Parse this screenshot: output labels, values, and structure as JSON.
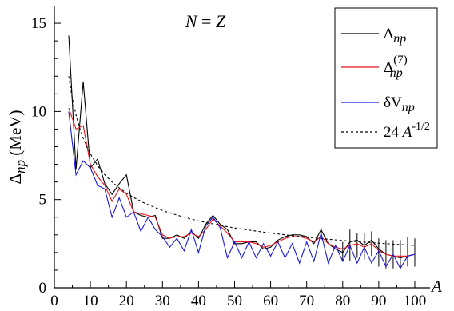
{
  "chart_data": {
    "type": "line",
    "annotation": "N = Z",
    "ylabel": {
      "main": "Δ",
      "sub": "np",
      "unit": " (MeV)"
    },
    "xlabel": "A",
    "xlim": [
      0,
      102
    ],
    "ylim": [
      0,
      16
    ],
    "xticks": [
      0,
      10,
      20,
      30,
      40,
      50,
      60,
      70,
      80,
      90,
      100
    ],
    "yticks": [
      0,
      5,
      10,
      15
    ],
    "grid": false,
    "legend_position": "top-right",
    "series": [
      {
        "key": "delta_np",
        "legend": {
          "main": "Δ",
          "sub": "np",
          "sup": ""
        },
        "color": "#000000",
        "dash": "",
        "x": [
          4,
          6,
          8,
          10,
          12,
          14,
          16,
          18,
          20,
          22,
          24,
          26,
          28,
          30,
          32,
          34,
          36,
          38,
          40,
          42,
          44,
          46,
          48,
          50,
          52,
          54,
          56,
          58,
          60,
          62,
          64,
          66,
          68,
          70,
          72,
          74,
          76,
          78,
          80,
          82,
          84,
          86,
          88,
          90,
          92,
          94,
          96,
          98,
          100
        ],
        "y": [
          14.3,
          6.7,
          11.7,
          6.8,
          7.3,
          5.9,
          5.3,
          5.9,
          6.4,
          4.3,
          4.1,
          4.0,
          4.1,
          2.8,
          2.8,
          3.0,
          2.8,
          3.2,
          2.8,
          3.6,
          4.1,
          3.6,
          3.3,
          2.5,
          2.5,
          2.6,
          2.6,
          2.2,
          2.3,
          2.7,
          2.9,
          3.0,
          3.0,
          2.9,
          2.5,
          3.3,
          2.5,
          2.2,
          2.0,
          2.6,
          2.7,
          2.4,
          2.7,
          2.2,
          1.9,
          1.8,
          1.7,
          1.8,
          1.9
        ]
      },
      {
        "key": "delta_np7",
        "legend": {
          "main": "Δ",
          "sub": "np",
          "sup": "(7)"
        },
        "color": "#e8141e",
        "dash": "",
        "x": [
          4,
          6,
          8,
          10,
          12,
          14,
          16,
          18,
          20,
          22,
          24,
          26,
          28,
          30,
          32,
          34,
          36,
          38,
          40,
          42,
          44,
          46,
          48,
          50,
          52,
          54,
          56,
          58,
          60,
          62,
          64,
          66,
          68,
          70,
          72,
          74,
          76,
          78,
          80,
          82,
          84,
          86,
          88,
          90,
          92,
          94,
          96,
          98,
          100
        ],
        "y": [
          10.2,
          9.0,
          9.2,
          7.0,
          6.3,
          5.8,
          4.9,
          5.6,
          5.3,
          4.3,
          4.2,
          4.1,
          4.0,
          3.0,
          2.8,
          2.9,
          2.9,
          3.1,
          2.9,
          3.3,
          3.9,
          3.5,
          3.1,
          2.6,
          2.6,
          2.6,
          2.5,
          2.3,
          2.4,
          2.6,
          2.8,
          2.9,
          2.9,
          2.8,
          2.6,
          2.9,
          2.5,
          2.3,
          2.2,
          2.4,
          2.5,
          2.3,
          2.5,
          2.1,
          1.9,
          1.8,
          1.8,
          1.8,
          1.9
        ]
      },
      {
        "key": "delta_v_np",
        "legend": {
          "main": "δV",
          "sub": "np",
          "sup": ""
        },
        "color": "#1a1adb",
        "dash": "",
        "x": [
          4,
          6,
          8,
          10,
          12,
          14,
          16,
          18,
          20,
          22,
          24,
          26,
          28,
          30,
          32,
          34,
          36,
          38,
          40,
          42,
          44,
          46,
          48,
          50,
          52,
          54,
          56,
          58,
          60,
          62,
          64,
          66,
          68,
          70,
          72,
          74,
          76,
          78,
          80,
          82,
          84,
          86,
          88,
          90,
          92,
          94,
          96,
          98,
          100
        ],
        "y": [
          10.0,
          6.4,
          7.2,
          6.8,
          5.8,
          5.6,
          4.0,
          5.1,
          4.0,
          4.3,
          3.2,
          4.0,
          3.3,
          2.9,
          2.3,
          2.8,
          2.1,
          3.3,
          2.0,
          3.5,
          4.0,
          3.4,
          1.7,
          2.6,
          1.7,
          2.6,
          1.7,
          2.5,
          1.8,
          2.6,
          1.7,
          2.5,
          1.4,
          2.6,
          1.5,
          3.1,
          1.4,
          2.4,
          1.5,
          2.4,
          1.4,
          2.3,
          1.4,
          2.1,
          1.2,
          1.9,
          1.1,
          1.8,
          1.9
        ]
      },
      {
        "key": "fit_curve",
        "legend": {
          "main": "24 ",
          "italic": "A",
          "sup": "-1/2"
        },
        "color": "#000000",
        "dash": "3,3",
        "x": [
          4,
          5,
          6,
          7,
          8,
          9,
          10,
          12,
          14,
          16,
          18,
          20,
          22,
          25,
          28,
          31,
          35,
          40,
          45,
          50,
          55,
          60,
          65,
          70,
          75,
          80,
          85,
          90,
          95,
          100
        ],
        "y": [
          12.0,
          10.73,
          9.8,
          9.07,
          8.49,
          8.0,
          7.59,
          6.93,
          6.41,
          6.0,
          5.66,
          5.37,
          5.12,
          4.8,
          4.54,
          4.31,
          4.06,
          3.79,
          3.58,
          3.39,
          3.24,
          3.1,
          2.98,
          2.87,
          2.77,
          2.68,
          2.6,
          2.53,
          2.46,
          2.4
        ]
      }
    ],
    "error_bars": {
      "x": [
        74,
        80,
        82,
        84,
        86,
        88,
        90,
        92,
        94,
        96,
        98,
        100
      ],
      "low": [
        2.7,
        1.5,
        1.5,
        1.7,
        1.6,
        1.8,
        1.2,
        1.1,
        1.1,
        1.1,
        1.2,
        1.2
      ],
      "high": [
        3.4,
        2.6,
        3.3,
        3.1,
        3.1,
        3.2,
        2.8,
        2.7,
        2.7,
        2.7,
        2.9,
        2.8
      ]
    }
  }
}
